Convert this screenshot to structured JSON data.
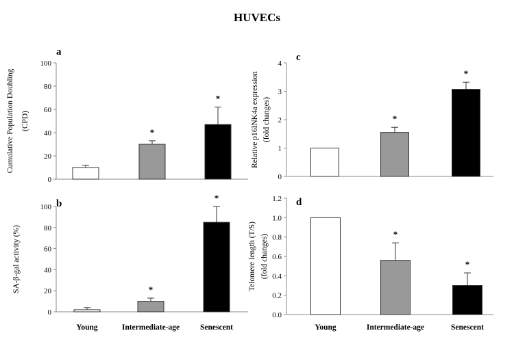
{
  "figure_title": "HUVECs",
  "chart_data": [
    {
      "type": "bar",
      "panel": "a",
      "categories": [
        "Young",
        "Intermediate-age",
        "Senescent"
      ],
      "values": [
        10,
        30,
        47
      ],
      "errors": [
        2,
        3,
        15
      ],
      "significance": [
        "",
        "*",
        "*"
      ],
      "bar_colors": [
        "#ffffff",
        "#999999",
        "#000000"
      ],
      "ylabel_lines": [
        "Cumulative Population Doubling",
        "(CPD)"
      ],
      "ylim": [
        0,
        100
      ],
      "yticks": [
        "0",
        "20",
        "40",
        "60",
        "80",
        "100"
      ],
      "show_category_labels": false
    },
    {
      "type": "bar",
      "panel": "b",
      "categories": [
        "Young",
        "Intermediate-age",
        "Senescent"
      ],
      "values": [
        2,
        10,
        85
      ],
      "errors": [
        2,
        3,
        15
      ],
      "significance": [
        "",
        "*",
        "*"
      ],
      "bar_colors": [
        "#ffffff",
        "#999999",
        "#000000"
      ],
      "ylabel_lines": [
        "SA-β-gal activity (%)"
      ],
      "ylim": [
        0,
        100
      ],
      "yticks": [
        "0",
        "20",
        "40",
        "60",
        "80",
        "100"
      ],
      "show_category_labels": true
    },
    {
      "type": "bar",
      "panel": "c",
      "categories": [
        "Young",
        "Intermediate-age",
        "Senescent"
      ],
      "values": [
        1.0,
        1.55,
        3.07
      ],
      "errors": [
        0,
        0.18,
        0.25
      ],
      "significance": [
        "",
        "*",
        "*"
      ],
      "bar_colors": [
        "#ffffff",
        "#999999",
        "#000000"
      ],
      "ylabel_lines": [
        "Relative p16INK4a expression",
        "(fold changes)"
      ],
      "ylim": [
        0,
        4
      ],
      "yticks": [
        "0",
        "1",
        "2",
        "3",
        "4"
      ],
      "show_category_labels": false
    },
    {
      "type": "bar",
      "panel": "d",
      "categories": [
        "Young",
        "Intermediate-age",
        "Senescent"
      ],
      "values": [
        1.0,
        0.56,
        0.3
      ],
      "errors": [
        0,
        0.18,
        0.13
      ],
      "significance": [
        "",
        "*",
        "*"
      ],
      "bar_colors": [
        "#ffffff",
        "#999999",
        "#000000"
      ],
      "ylabel_lines": [
        "Telomere length (T/S)",
        "(fold changes)"
      ],
      "ylim": [
        0,
        1.2
      ],
      "yticks": [
        "0.0",
        "0.2",
        "0.4",
        "0.6",
        "0.8",
        "1.0",
        "1.2"
      ],
      "show_category_labels": true
    }
  ]
}
